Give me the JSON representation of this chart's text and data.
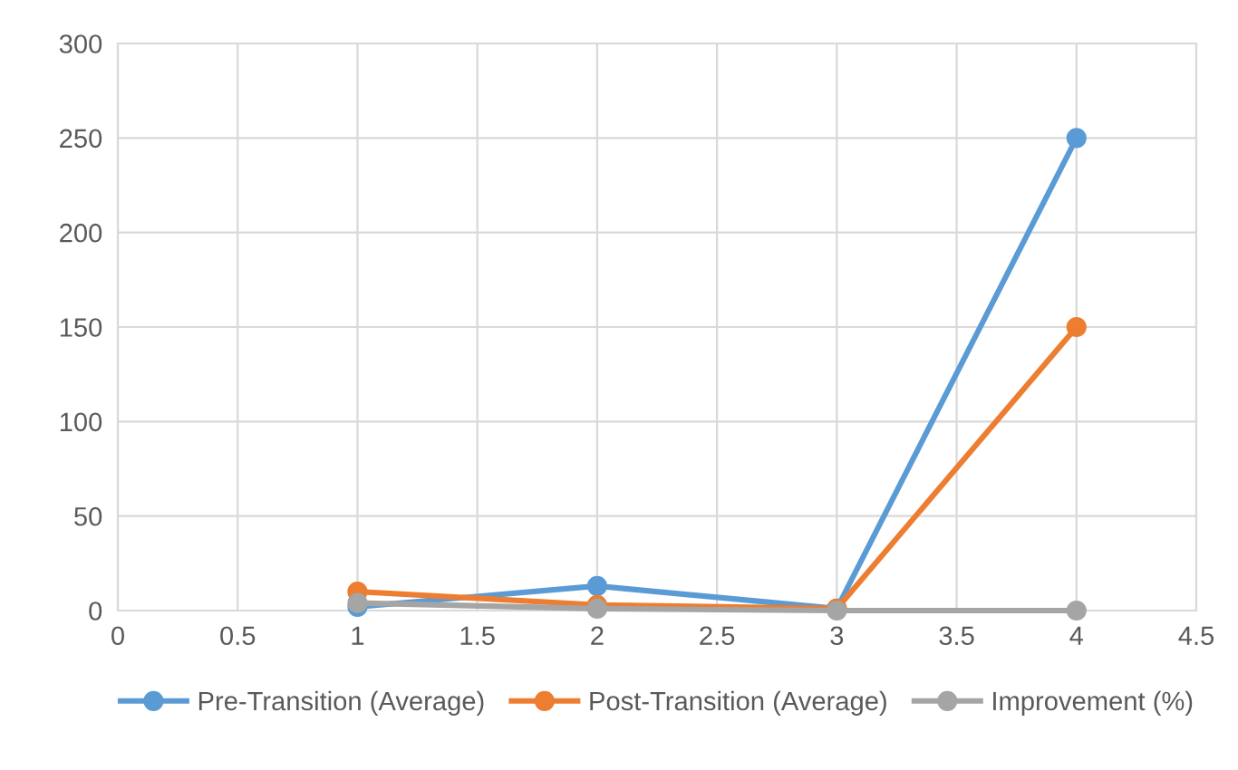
{
  "chart_data": {
    "type": "line",
    "x": [
      1,
      2,
      3,
      4
    ],
    "series": [
      {
        "name": "Pre-Transition (Average)",
        "color": "#5b9bd5",
        "values": [
          2,
          13,
          1,
          250
        ]
      },
      {
        "name": "Post-Transition (Average)",
        "color": "#ed7d31",
        "values": [
          10,
          3,
          1,
          150
        ]
      },
      {
        "name": "Improvement (%)",
        "color": "#a5a5a5",
        "values": [
          4,
          1,
          0,
          0
        ]
      }
    ],
    "xlim": [
      0,
      4.5
    ],
    "xticks": [
      0,
      0.5,
      1,
      1.5,
      2,
      2.5,
      3,
      3.5,
      4,
      4.5
    ],
    "ylim": [
      0,
      300
    ],
    "yticks": [
      0,
      50,
      100,
      150,
      200,
      250,
      300
    ],
    "grid": true,
    "legend": "bottom",
    "marker": "circle",
    "line_style": "solid"
  }
}
